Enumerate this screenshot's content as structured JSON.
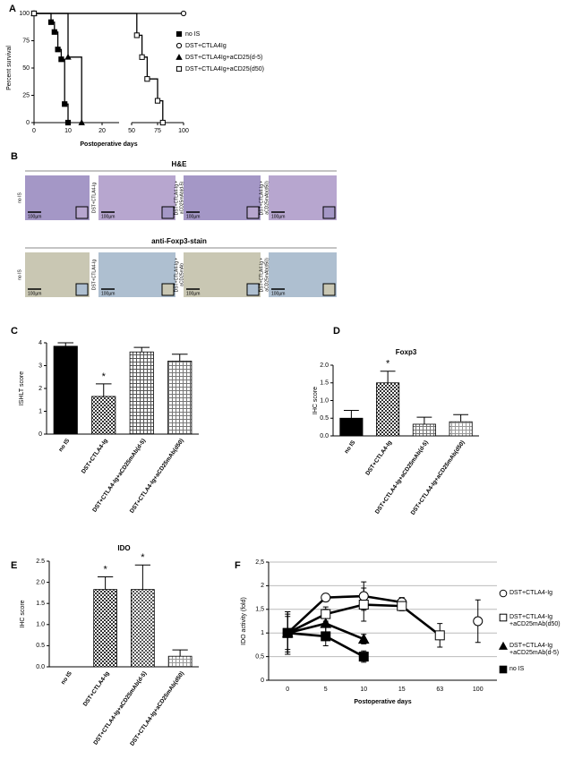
{
  "chart_data": [
    {
      "panel": "A",
      "type": "step",
      "ylabel": "Percent survival",
      "xlabel": "Postoperative days",
      "xlim": [
        0,
        100
      ],
      "xbreak": [
        25,
        50
      ],
      "xticks": [
        0,
        10,
        20,
        50,
        75,
        100
      ],
      "ylim": [
        0,
        100
      ],
      "yticks": [
        0,
        25,
        50,
        75,
        100
      ],
      "series": [
        {
          "name": "no IS",
          "marker": "square",
          "color": "#000000",
          "x": [
            0,
            5,
            6,
            7,
            8,
            9,
            10
          ],
          "y": [
            100,
            92,
            83,
            67,
            58,
            17,
            0
          ]
        },
        {
          "name": "DST+CTLA4Ig",
          "marker": "circle",
          "color": "#ffffff",
          "x": [
            0,
            100
          ],
          "y": [
            100,
            100
          ]
        },
        {
          "name": "DST+CTLA4Ig+aCD25(d-5)",
          "marker": "triangle",
          "color": "#000000",
          "x": [
            0,
            10,
            14
          ],
          "y": [
            100,
            60,
            0
          ]
        },
        {
          "name": "DST+CTLA4Ig+aCD25(d50)",
          "marker": "square",
          "color": "#ffffff",
          "x": [
            0,
            55,
            60,
            65,
            75,
            80
          ],
          "y": [
            100,
            80,
            60,
            40,
            20,
            0
          ]
        }
      ]
    },
    {
      "panel": "C",
      "type": "bar",
      "ylabel": "ISHLT score",
      "categories": [
        "no IS",
        "DST+CTLA4-Ig",
        "DST+CTLA4-Ig+aCD25mAb(d-5)",
        "DST+CTLA4-Ig+aCD25mAb(d50)"
      ],
      "values": [
        3.85,
        1.65,
        3.6,
        3.2
      ],
      "errors": [
        0.15,
        0.55,
        0.2,
        0.3
      ],
      "star_labels": [
        null,
        "*",
        null,
        null
      ],
      "colors": [
        "#000000",
        "#333333",
        "#555555",
        "#777777"
      ],
      "patterns": [
        "solid",
        "checker",
        "grid",
        "grid"
      ],
      "ylim": [
        0,
        4
      ],
      "yticks": [
        0,
        1,
        2,
        3,
        4
      ]
    },
    {
      "panel": "D",
      "type": "bar",
      "title": "Foxp3",
      "ylabel": "IHC score",
      "categories": [
        "no IS",
        "DST+CTLA4-Ig",
        "DST+CTLA4-Ig+aCD25mAb(d-5)",
        "DST+CTLA4-Ig+aCD25mAb(d50)"
      ],
      "values": [
        0.5,
        1.5,
        0.33,
        0.4
      ],
      "errors": [
        0.22,
        0.33,
        0.2,
        0.2
      ],
      "star_labels": [
        null,
        "*",
        null,
        null
      ],
      "colors": [
        "#000000",
        "#333333",
        "#777777",
        "#999999"
      ],
      "patterns": [
        "solid",
        "checker",
        "grid",
        "grid"
      ],
      "ylim": [
        0,
        2
      ],
      "yticks": [
        {
          "value": 0,
          "label": "0.0"
        },
        0.5,
        {
          "value": 1,
          "label": "1.0"
        },
        1.5,
        {
          "value": 2,
          "label": "2.0"
        }
      ]
    },
    {
      "panel": "E",
      "type": "bar",
      "title": "IDO",
      "ylabel": "IHC score",
      "categories": [
        "no IS",
        "DST+CTLA4-Ig",
        "DST+CTLA4-Ig+aCD25mAb(d-5)",
        "DST+CTLA4-Ig+aCD25mAb(d50)"
      ],
      "values": [
        0,
        1.83,
        1.83,
        0.25
      ],
      "errors": [
        0,
        0.3,
        0.58,
        0.15
      ],
      "star_labels": [
        null,
        "*",
        "*",
        null
      ],
      "colors": [
        "#000000",
        "#333333",
        "#555555",
        "#999999"
      ],
      "patterns": [
        "solid",
        "checker",
        "checker",
        "grid"
      ],
      "ylim": [
        0,
        2.5
      ],
      "yticks": [
        {
          "value": 0,
          "label": "0.0"
        },
        0.5,
        {
          "value": 1,
          "label": "1.0"
        },
        1.5,
        {
          "value": 2,
          "label": "2.0"
        },
        2.5
      ]
    },
    {
      "panel": "F",
      "type": "line",
      "ylabel": "IDO activity (fold)",
      "xlabel": "Postoperative days",
      "grid": true,
      "categories": [
        "0",
        "5",
        "10",
        "15",
        "63",
        "100"
      ],
      "ylim": [
        0,
        2.5
      ],
      "yticks": [
        0,
        {
          "value": 0.5,
          "label": "0,5"
        },
        1,
        {
          "value": 1.5,
          "label": "1,5"
        },
        2,
        {
          "value": 2.5,
          "label": "2,5"
        }
      ],
      "series": [
        {
          "name": "DST+CTLA4-Ig",
          "marker": "circle",
          "color": "#ffffff",
          "values": [
            1,
            1.75,
            1.78,
            1.65,
            null,
            1.25
          ],
          "errors": [
            0.45,
            0.08,
            0.3,
            0.1,
            null,
            0.45
          ]
        },
        {
          "name": "DST+CTLA4-Ig +aCD25mAb(d50)",
          "marker": "square",
          "color": "#ffffff",
          "values": [
            1,
            1.4,
            1.6,
            1.57,
            0.95,
            null
          ],
          "errors": [
            0.45,
            0.15,
            0.35,
            0.1,
            0.25,
            null
          ]
        },
        {
          "name": "DST+CTLA4-Ig +aCD25mAb(d-5)",
          "marker": "triangle",
          "color": "#000000",
          "values": [
            1,
            1.2,
            0.87,
            null,
            null,
            null
          ],
          "errors": [
            0.4,
            0.3,
            0.1,
            null,
            null,
            null
          ]
        },
        {
          "name": "no IS",
          "marker": "square",
          "color": "#000000",
          "values": [
            1,
            0.93,
            0.5,
            null,
            null,
            null
          ],
          "errors": [
            0.35,
            0.2,
            0.12,
            null,
            null,
            null
          ]
        }
      ]
    }
  ],
  "histology": {
    "panel": "B",
    "scale_bar": "100µm",
    "sections": [
      {
        "title": "H&E",
        "labels": [
          [
            "no IS"
          ],
          [
            "DST+CTLA4-Ig"
          ],
          [
            "DST+CTLA4-Ig +",
            "aCD25mAb(d-5)"
          ],
          [
            "DST+CTLA4-Ig +",
            "aCD25mAb(d50)"
          ]
        ]
      },
      {
        "title": "anti-Foxp3-stain",
        "labels": [
          [
            "no IS"
          ],
          [
            "DST+CTLA4-Ig"
          ],
          [
            "DST+CTLA4-Ig +",
            "aCD25mAb"
          ],
          [
            "DST+CTLA4-Ig +",
            "aCD25mAb(d50)"
          ]
        ]
      }
    ]
  }
}
